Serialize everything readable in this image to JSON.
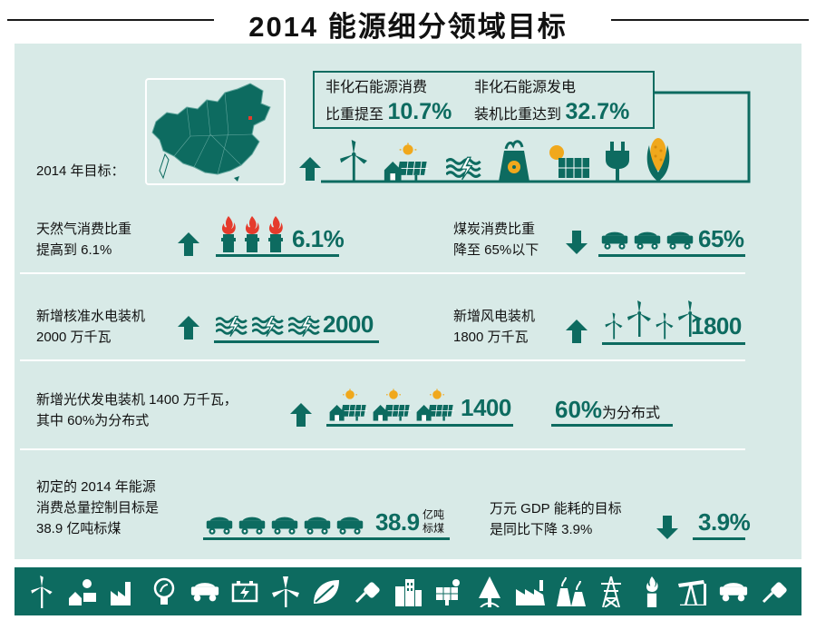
{
  "title": "2014 能源细分领域目标",
  "header": {
    "target_label": "2014 年目标：",
    "box_left_line1": "非化石能源消费",
    "box_left_line2_prefix": "比重提至",
    "box_left_value": "10.7%",
    "box_right_line1": "非化石能源发电",
    "box_right_line2_prefix": "装机比重达到",
    "box_right_value": "32.7%"
  },
  "rows": {
    "gas_text_1": "天然气消费比重",
    "gas_text_2": "提高到 6.1%",
    "gas_value": "6.1%",
    "coal_text_1": "煤炭消费比重",
    "coal_text_2": "降至 65%以下",
    "coal_value": "65%",
    "hydro_text_1": "新增核准水电装机",
    "hydro_text_2": "2000 万千瓦",
    "hydro_value": "2000",
    "wind_text_1": "新增风电装机",
    "wind_text_2": "1800 万千瓦",
    "wind_value": "1800",
    "solar_text_1": "新增光伏发电装机 1400 万千瓦，",
    "solar_text_2": "其中 60%为分布式",
    "solar_value": "1400",
    "dist_value": "60%",
    "dist_suffix": "为分布式",
    "total_text_1": "初定的 2014 年能源",
    "total_text_2": "消费总量控制目标是",
    "total_text_3": "38.9 亿吨标煤",
    "total_value": "38.9",
    "total_unit_1": "亿吨",
    "total_unit_2": "标煤",
    "gdp_text_1": "万元 GDP 能耗的目标",
    "gdp_text_2": "是同比下降 3.9%",
    "gdp_value": "3.9%"
  },
  "colors": {
    "teal": "#0d6b60",
    "panel": "#d8eae7",
    "accent": "#e53b2c"
  },
  "icons": {
    "header_row": [
      "wind-turbine-icon",
      "house-solar-icon",
      "hydro-wave-icon",
      "nuclear-plant-icon",
      "solar-panel-icon",
      "plug-icon",
      "corn-icon"
    ],
    "footer_row": [
      "wind-turbine-icon",
      "house-solar-icon",
      "factory-icon",
      "bulb-icon",
      "coal-cart-icon",
      "battery-icon",
      "windmill-icon",
      "leaf-icon",
      "plug-icon",
      "buildings-icon",
      "solar-panel-icon",
      "oil-drop-icon",
      "factory-icon",
      "power-plant-icon",
      "pylon-icon",
      "gas-flame-icon",
      "pump-jack-icon",
      "coal-cart-icon",
      "plug-icon"
    ]
  }
}
